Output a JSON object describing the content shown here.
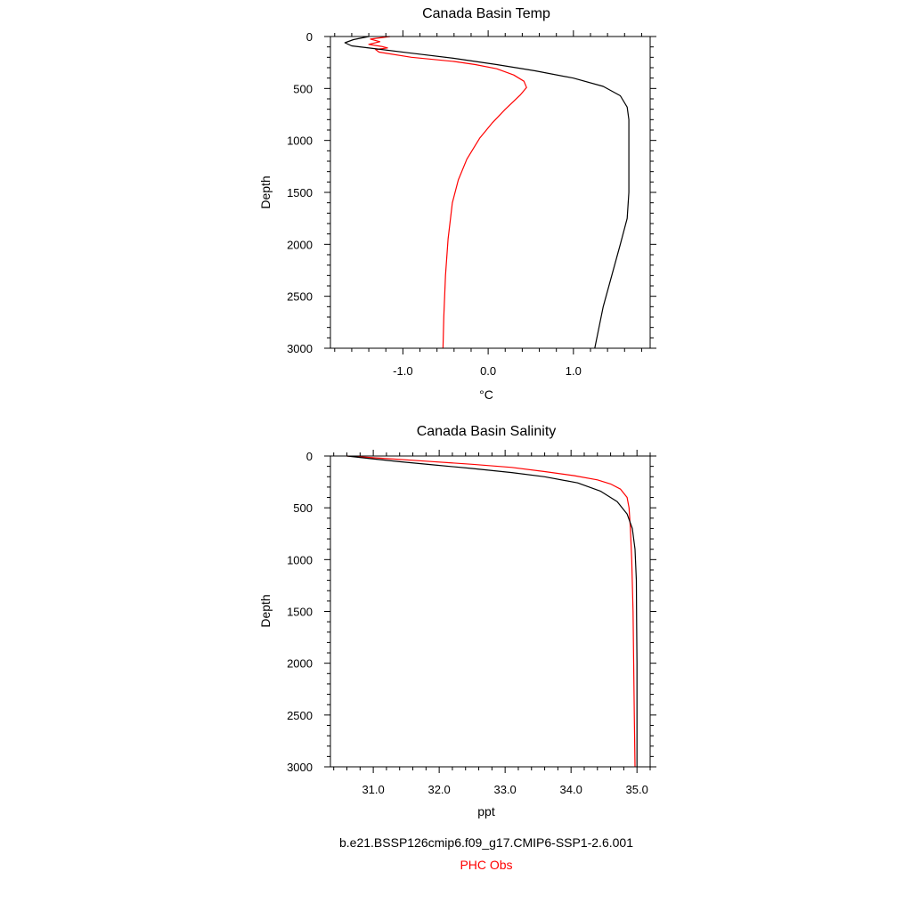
{
  "chart_data": [
    {
      "type": "line",
      "title": "Canada Basin Temp",
      "xlabel": "°C",
      "ylabel": "Depth",
      "xlim": [
        -1.85,
        1.9
      ],
      "ylim": [
        3000,
        0
      ],
      "y_inverted": true,
      "x_ticks": [
        -1.0,
        0.0,
        1.0
      ],
      "x_tick_labels": [
        "-1.0",
        "0.0",
        "1.0"
      ],
      "y_ticks": [
        0,
        500,
        1000,
        1500,
        2000,
        2500,
        3000
      ],
      "y_tick_labels": [
        "0",
        "500",
        "1000",
        "1500",
        "2000",
        "2500",
        "3000"
      ],
      "series": [
        {
          "color": "#000000",
          "points": [
            [
              -1.4,
              0
            ],
            [
              -1.58,
              30
            ],
            [
              -1.68,
              60
            ],
            [
              -1.6,
              90
            ],
            [
              -1.3,
              120
            ],
            [
              -0.9,
              160
            ],
            [
              -0.4,
              210
            ],
            [
              0.1,
              270
            ],
            [
              0.55,
              330
            ],
            [
              1.0,
              400
            ],
            [
              1.35,
              480
            ],
            [
              1.55,
              570
            ],
            [
              1.63,
              680
            ],
            [
              1.65,
              800
            ],
            [
              1.65,
              1000
            ],
            [
              1.65,
              1200
            ],
            [
              1.65,
              1500
            ],
            [
              1.63,
              1750
            ],
            [
              1.55,
              2000
            ],
            [
              1.45,
              2300
            ],
            [
              1.35,
              2600
            ],
            [
              1.25,
              3000
            ]
          ]
        },
        {
          "color": "#ff0000",
          "points": [
            [
              -1.15,
              0
            ],
            [
              -1.38,
              25
            ],
            [
              -1.27,
              50
            ],
            [
              -1.4,
              75
            ],
            [
              -1.25,
              95
            ],
            [
              -1.18,
              110
            ],
            [
              -1.32,
              125
            ],
            [
              -1.28,
              150
            ],
            [
              -0.9,
              200
            ],
            [
              -0.4,
              240
            ],
            [
              -0.15,
              270
            ],
            [
              0.1,
              310
            ],
            [
              0.3,
              370
            ],
            [
              0.42,
              430
            ],
            [
              0.45,
              490
            ],
            [
              0.38,
              560
            ],
            [
              0.2,
              700
            ],
            [
              0.05,
              830
            ],
            [
              -0.1,
              980
            ],
            [
              -0.25,
              1180
            ],
            [
              -0.35,
              1380
            ],
            [
              -0.42,
              1600
            ],
            [
              -0.47,
              1950
            ],
            [
              -0.5,
              2300
            ],
            [
              -0.52,
              2700
            ],
            [
              -0.53,
              3000
            ]
          ]
        }
      ]
    },
    {
      "type": "line",
      "title": "Canada Basin Salinity",
      "xlabel": "ppt",
      "ylabel": "Depth",
      "xlim": [
        30.35,
        35.2
      ],
      "ylim": [
        3000,
        0
      ],
      "y_inverted": true,
      "x_ticks": [
        31.0,
        32.0,
        33.0,
        34.0,
        35.0
      ],
      "x_tick_labels": [
        "31.0",
        "32.0",
        "33.0",
        "34.0",
        "35.0"
      ],
      "y_ticks": [
        0,
        500,
        1000,
        1500,
        2000,
        2500,
        3000
      ],
      "y_tick_labels": [
        "0",
        "500",
        "1000",
        "1500",
        "2000",
        "2500",
        "3000"
      ],
      "series": [
        {
          "color": "#000000",
          "points": [
            [
              30.6,
              0
            ],
            [
              30.95,
              25
            ],
            [
              31.4,
              55
            ],
            [
              31.9,
              85
            ],
            [
              32.5,
              120
            ],
            [
              33.1,
              160
            ],
            [
              33.6,
              200
            ],
            [
              34.1,
              260
            ],
            [
              34.45,
              340
            ],
            [
              34.7,
              440
            ],
            [
              34.85,
              560
            ],
            [
              34.93,
              700
            ],
            [
              34.97,
              900
            ],
            [
              34.99,
              1200
            ],
            [
              34.995,
              1600
            ],
            [
              35.0,
              2000
            ],
            [
              35.0,
              3000
            ]
          ]
        },
        {
          "color": "#ff0000",
          "points": [
            [
              30.6,
              0
            ],
            [
              31.2,
              25
            ],
            [
              31.8,
              50
            ],
            [
              32.5,
              80
            ],
            [
              33.1,
              110
            ],
            [
              33.6,
              150
            ],
            [
              34.05,
              190
            ],
            [
              34.4,
              230
            ],
            [
              34.6,
              270
            ],
            [
              34.75,
              320
            ],
            [
              34.85,
              400
            ],
            [
              34.88,
              500
            ],
            [
              34.9,
              700
            ],
            [
              34.92,
              1000
            ],
            [
              34.94,
              1500
            ],
            [
              34.95,
              2000
            ],
            [
              34.96,
              2500
            ],
            [
              34.97,
              3000
            ]
          ]
        }
      ]
    }
  ],
  "legend": {
    "model_label": "b.e21.BSSP126cmip6.f09_g17.CMIP6-SSP1-2.6.001",
    "obs_label": "PHC Obs",
    "model_color": "#000000",
    "obs_color": "#ff0000"
  }
}
